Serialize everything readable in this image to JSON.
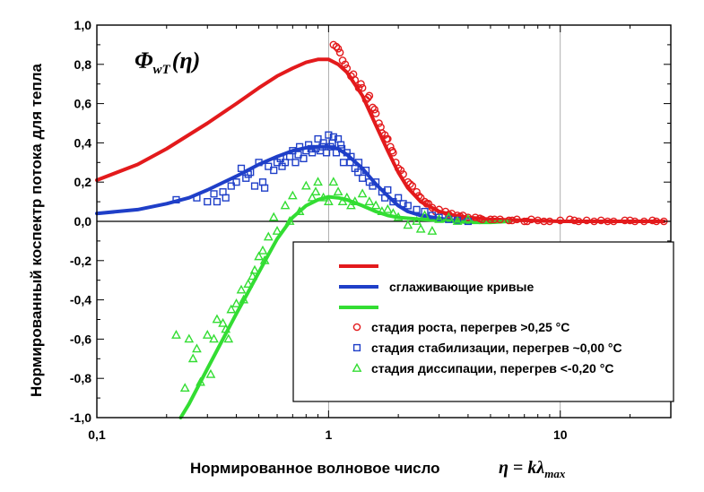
{
  "chart_data": {
    "type": "scatter",
    "title": "",
    "formula_label": {
      "main": "Φ",
      "sub": "wT",
      "arg": "(η)"
    },
    "xlabel": "Нормированное волновое число",
    "xlabel_formula": {
      "lhs": "η",
      "eq": " = ",
      "k": "k",
      "lambda": "λ",
      "sub": "max"
    },
    "ylabel": "Нормированный коспектр потока для тепла",
    "x_scale": "log",
    "xlim": [
      0.1,
      30
    ],
    "ylim": [
      -1.0,
      1.0
    ],
    "x_ticks": [
      {
        "value": 0.1,
        "label": "0,1"
      },
      {
        "value": 1,
        "label": "1"
      },
      {
        "value": 10,
        "label": "10"
      }
    ],
    "y_ticks": [
      {
        "value": 1.0,
        "label": "1,0"
      },
      {
        "value": 0.8,
        "label": "0,8"
      },
      {
        "value": 0.6,
        "label": "0,6"
      },
      {
        "value": 0.4,
        "label": "0,4"
      },
      {
        "value": 0.2,
        "label": "0,2"
      },
      {
        "value": 0.0,
        "label": "0,0"
      },
      {
        "value": -0.2,
        "label": "-0,2"
      },
      {
        "value": -0.4,
        "label": "-0,4"
      },
      {
        "value": -0.6,
        "label": "-0,6"
      },
      {
        "value": -0.8,
        "label": "-0,8"
      },
      {
        "value": -1.0,
        "label": "-1,0"
      }
    ],
    "grid": true,
    "zero_line": true,
    "legend_position": "lower-right",
    "legend": {
      "smoothing_label": "сглаживающие кривые",
      "growth_label": "стадия роста, перегрев >0,25 °C",
      "stabilization_label": "стадия стабилизации, перегрев ~0,00 °C",
      "dissipation_label": "стадия диссипации, перегрев <-0,20 °C"
    },
    "colors": {
      "red": "#e31a1c",
      "blue": "#1f3fc8",
      "green": "#33dd33"
    },
    "curves": [
      {
        "color": "red",
        "x": [
          0.1,
          0.15,
          0.2,
          0.3,
          0.4,
          0.5,
          0.6,
          0.7,
          0.8,
          0.9,
          1.0,
          1.1,
          1.2,
          1.4,
          1.6,
          1.8,
          2.0,
          2.2,
          2.5,
          3.0,
          3.5,
          4.0,
          5.0,
          7.0,
          10,
          15,
          20,
          28
        ],
        "y": [
          0.21,
          0.29,
          0.37,
          0.5,
          0.6,
          0.68,
          0.74,
          0.78,
          0.81,
          0.825,
          0.825,
          0.8,
          0.76,
          0.64,
          0.49,
          0.36,
          0.25,
          0.17,
          0.1,
          0.05,
          0.03,
          0.02,
          0.01,
          0.005,
          0.0,
          0.0,
          0.0,
          0.0
        ]
      },
      {
        "color": "blue",
        "x": [
          0.1,
          0.15,
          0.2,
          0.25,
          0.3,
          0.4,
          0.5,
          0.6,
          0.7,
          0.8,
          0.9,
          1.0,
          1.1,
          1.2,
          1.4,
          1.6,
          1.8,
          2.0,
          2.2,
          2.5,
          3.0,
          3.5,
          4.0,
          4.5
        ],
        "y": [
          0.04,
          0.06,
          0.09,
          0.12,
          0.16,
          0.23,
          0.29,
          0.33,
          0.36,
          0.375,
          0.38,
          0.38,
          0.37,
          0.34,
          0.27,
          0.19,
          0.13,
          0.08,
          0.05,
          0.03,
          0.015,
          0.005,
          0.0,
          -0.005
        ]
      },
      {
        "color": "green",
        "x": [
          0.23,
          0.25,
          0.3,
          0.35,
          0.4,
          0.45,
          0.5,
          0.55,
          0.6,
          0.7,
          0.8,
          0.9,
          1.0,
          1.1,
          1.2,
          1.4,
          1.6,
          1.8,
          2.0,
          2.5,
          3.0,
          3.5,
          4.0,
          5.0,
          6.0
        ],
        "y": [
          -1.0,
          -0.93,
          -0.75,
          -0.6,
          -0.47,
          -0.36,
          -0.26,
          -0.17,
          -0.09,
          0.02,
          0.08,
          0.11,
          0.125,
          0.12,
          0.11,
          0.08,
          0.05,
          0.03,
          0.02,
          0.01,
          0.005,
          0.0,
          -0.005,
          -0.005,
          0.0
        ]
      }
    ],
    "series": [
      {
        "color": "red",
        "marker": "circle",
        "x": [
          1.05,
          1.08,
          1.1,
          1.12,
          1.15,
          1.2,
          1.25,
          1.3,
          1.35,
          1.4,
          1.45,
          1.5,
          1.55,
          1.6,
          1.65,
          1.7,
          1.75,
          1.8,
          1.85,
          1.9,
          1.95,
          2.0,
          2.1,
          2.2,
          2.3,
          2.4,
          2.5,
          2.6,
          2.7,
          2.8,
          3.0,
          3.2,
          3.4,
          3.6,
          3.8,
          4.0,
          4.3,
          4.6,
          5.0,
          5.5,
          6.0,
          6.5,
          7.0,
          7.5,
          8.0,
          9.0,
          10.0,
          11,
          12,
          13,
          14,
          15,
          17,
          19,
          21,
          23,
          25,
          28,
          1.18,
          1.28,
          1.38,
          1.48,
          1.58,
          1.68,
          1.78,
          1.88,
          2.05,
          2.25,
          2.45,
          2.65,
          2.9,
          3.3,
          3.7,
          4.5,
          5.2,
          6.2,
          7.2,
          8.5,
          11.5,
          16,
          20,
          26
        ],
        "y": [
          0.9,
          0.89,
          0.88,
          0.86,
          0.82,
          0.78,
          0.74,
          0.72,
          0.68,
          0.68,
          0.62,
          0.64,
          0.58,
          0.55,
          0.5,
          0.45,
          0.44,
          0.42,
          0.38,
          0.35,
          0.3,
          0.27,
          0.24,
          0.2,
          0.18,
          0.15,
          0.12,
          0.1,
          0.09,
          0.07,
          0.06,
          0.05,
          0.04,
          0.03,
          0.03,
          0.02,
          0.02,
          0.01,
          0.01,
          0.01,
          0.005,
          0.01,
          0.0,
          0.01,
          0.005,
          0.0,
          0.005,
          0.01,
          0.0,
          0.005,
          0.0,
          0.005,
          0.0,
          0.005,
          0.0,
          0.0,
          0.005,
          0.0,
          0.8,
          0.75,
          0.7,
          0.63,
          0.57,
          0.48,
          0.42,
          0.36,
          0.26,
          0.19,
          0.13,
          0.09,
          0.05,
          0.035,
          0.025,
          0.015,
          0.01,
          0.005,
          0.0,
          0.0,
          0.005,
          0.0,
          0.005,
          0.0
        ]
      },
      {
        "color": "blue",
        "marker": "square",
        "x": [
          0.22,
          0.27,
          0.3,
          0.32,
          0.33,
          0.35,
          0.38,
          0.4,
          0.42,
          0.44,
          0.46,
          0.48,
          0.5,
          0.52,
          0.55,
          0.58,
          0.6,
          0.62,
          0.65,
          0.68,
          0.7,
          0.72,
          0.75,
          0.78,
          0.8,
          0.82,
          0.85,
          0.88,
          0.9,
          0.92,
          0.95,
          0.98,
          1.0,
          1.02,
          1.05,
          1.08,
          1.1,
          1.13,
          1.16,
          1.2,
          1.25,
          1.3,
          1.35,
          1.4,
          1.45,
          1.5,
          1.6,
          1.7,
          1.8,
          1.9,
          2.0,
          2.2,
          2.4,
          2.6,
          2.8,
          3.0,
          3.3,
          3.6,
          4.0,
          0.36,
          0.45,
          0.53,
          0.63,
          0.74,
          0.84,
          0.94,
          1.04,
          1.14,
          1.24,
          1.34,
          1.55,
          1.75,
          2.1
        ],
        "y": [
          0.11,
          0.12,
          0.1,
          0.14,
          0.1,
          0.15,
          0.18,
          0.2,
          0.27,
          0.22,
          0.25,
          0.18,
          0.3,
          0.2,
          0.28,
          0.26,
          0.3,
          0.32,
          0.3,
          0.33,
          0.36,
          0.3,
          0.38,
          0.32,
          0.36,
          0.39,
          0.35,
          0.37,
          0.42,
          0.36,
          0.4,
          0.35,
          0.44,
          0.38,
          0.43,
          0.35,
          0.42,
          0.39,
          0.3,
          0.35,
          0.33,
          0.27,
          0.3,
          0.22,
          0.26,
          0.2,
          0.2,
          0.15,
          0.16,
          0.1,
          0.12,
          0.08,
          0.06,
          0.05,
          0.03,
          0.02,
          0.01,
          0.005,
          0.0,
          0.12,
          0.24,
          0.17,
          0.28,
          0.34,
          0.37,
          0.38,
          0.4,
          0.37,
          0.3,
          0.25,
          0.18,
          0.12,
          0.09
        ]
      },
      {
        "color": "green",
        "marker": "triangle",
        "x": [
          0.22,
          0.24,
          0.25,
          0.27,
          0.28,
          0.3,
          0.32,
          0.33,
          0.35,
          0.37,
          0.38,
          0.4,
          0.42,
          0.45,
          0.48,
          0.5,
          0.52,
          0.55,
          0.58,
          0.6,
          0.65,
          0.7,
          0.75,
          0.8,
          0.85,
          0.9,
          0.95,
          1.0,
          1.05,
          1.1,
          1.15,
          1.2,
          1.3,
          1.4,
          1.5,
          1.6,
          1.7,
          1.8,
          2.0,
          2.2,
          2.4,
          2.6,
          2.8,
          3.0,
          3.3,
          3.6,
          4.0,
          0.26,
          0.31,
          0.36,
          0.43,
          0.47,
          0.53,
          0.68,
          0.88,
          1.25,
          1.9,
          2.5
        ],
        "y": [
          -0.58,
          -0.85,
          -0.6,
          -0.65,
          -0.82,
          -0.58,
          -0.6,
          -0.5,
          -0.52,
          -0.6,
          -0.45,
          -0.42,
          -0.35,
          -0.32,
          -0.25,
          -0.18,
          -0.15,
          -0.08,
          0.02,
          -0.05,
          0.08,
          0.13,
          0.05,
          0.18,
          0.12,
          0.2,
          0.12,
          0.1,
          0.2,
          0.15,
          0.1,
          0.12,
          0.1,
          0.14,
          0.1,
          0.08,
          0.05,
          0.06,
          0.02,
          -0.02,
          0.0,
          0.03,
          -0.05,
          0.01,
          0.02,
          0.0,
          0.01,
          -0.7,
          -0.78,
          -0.55,
          -0.4,
          -0.28,
          -0.2,
          0.0,
          0.15,
          0.08,
          0.04,
          -0.04
        ]
      }
    ]
  }
}
